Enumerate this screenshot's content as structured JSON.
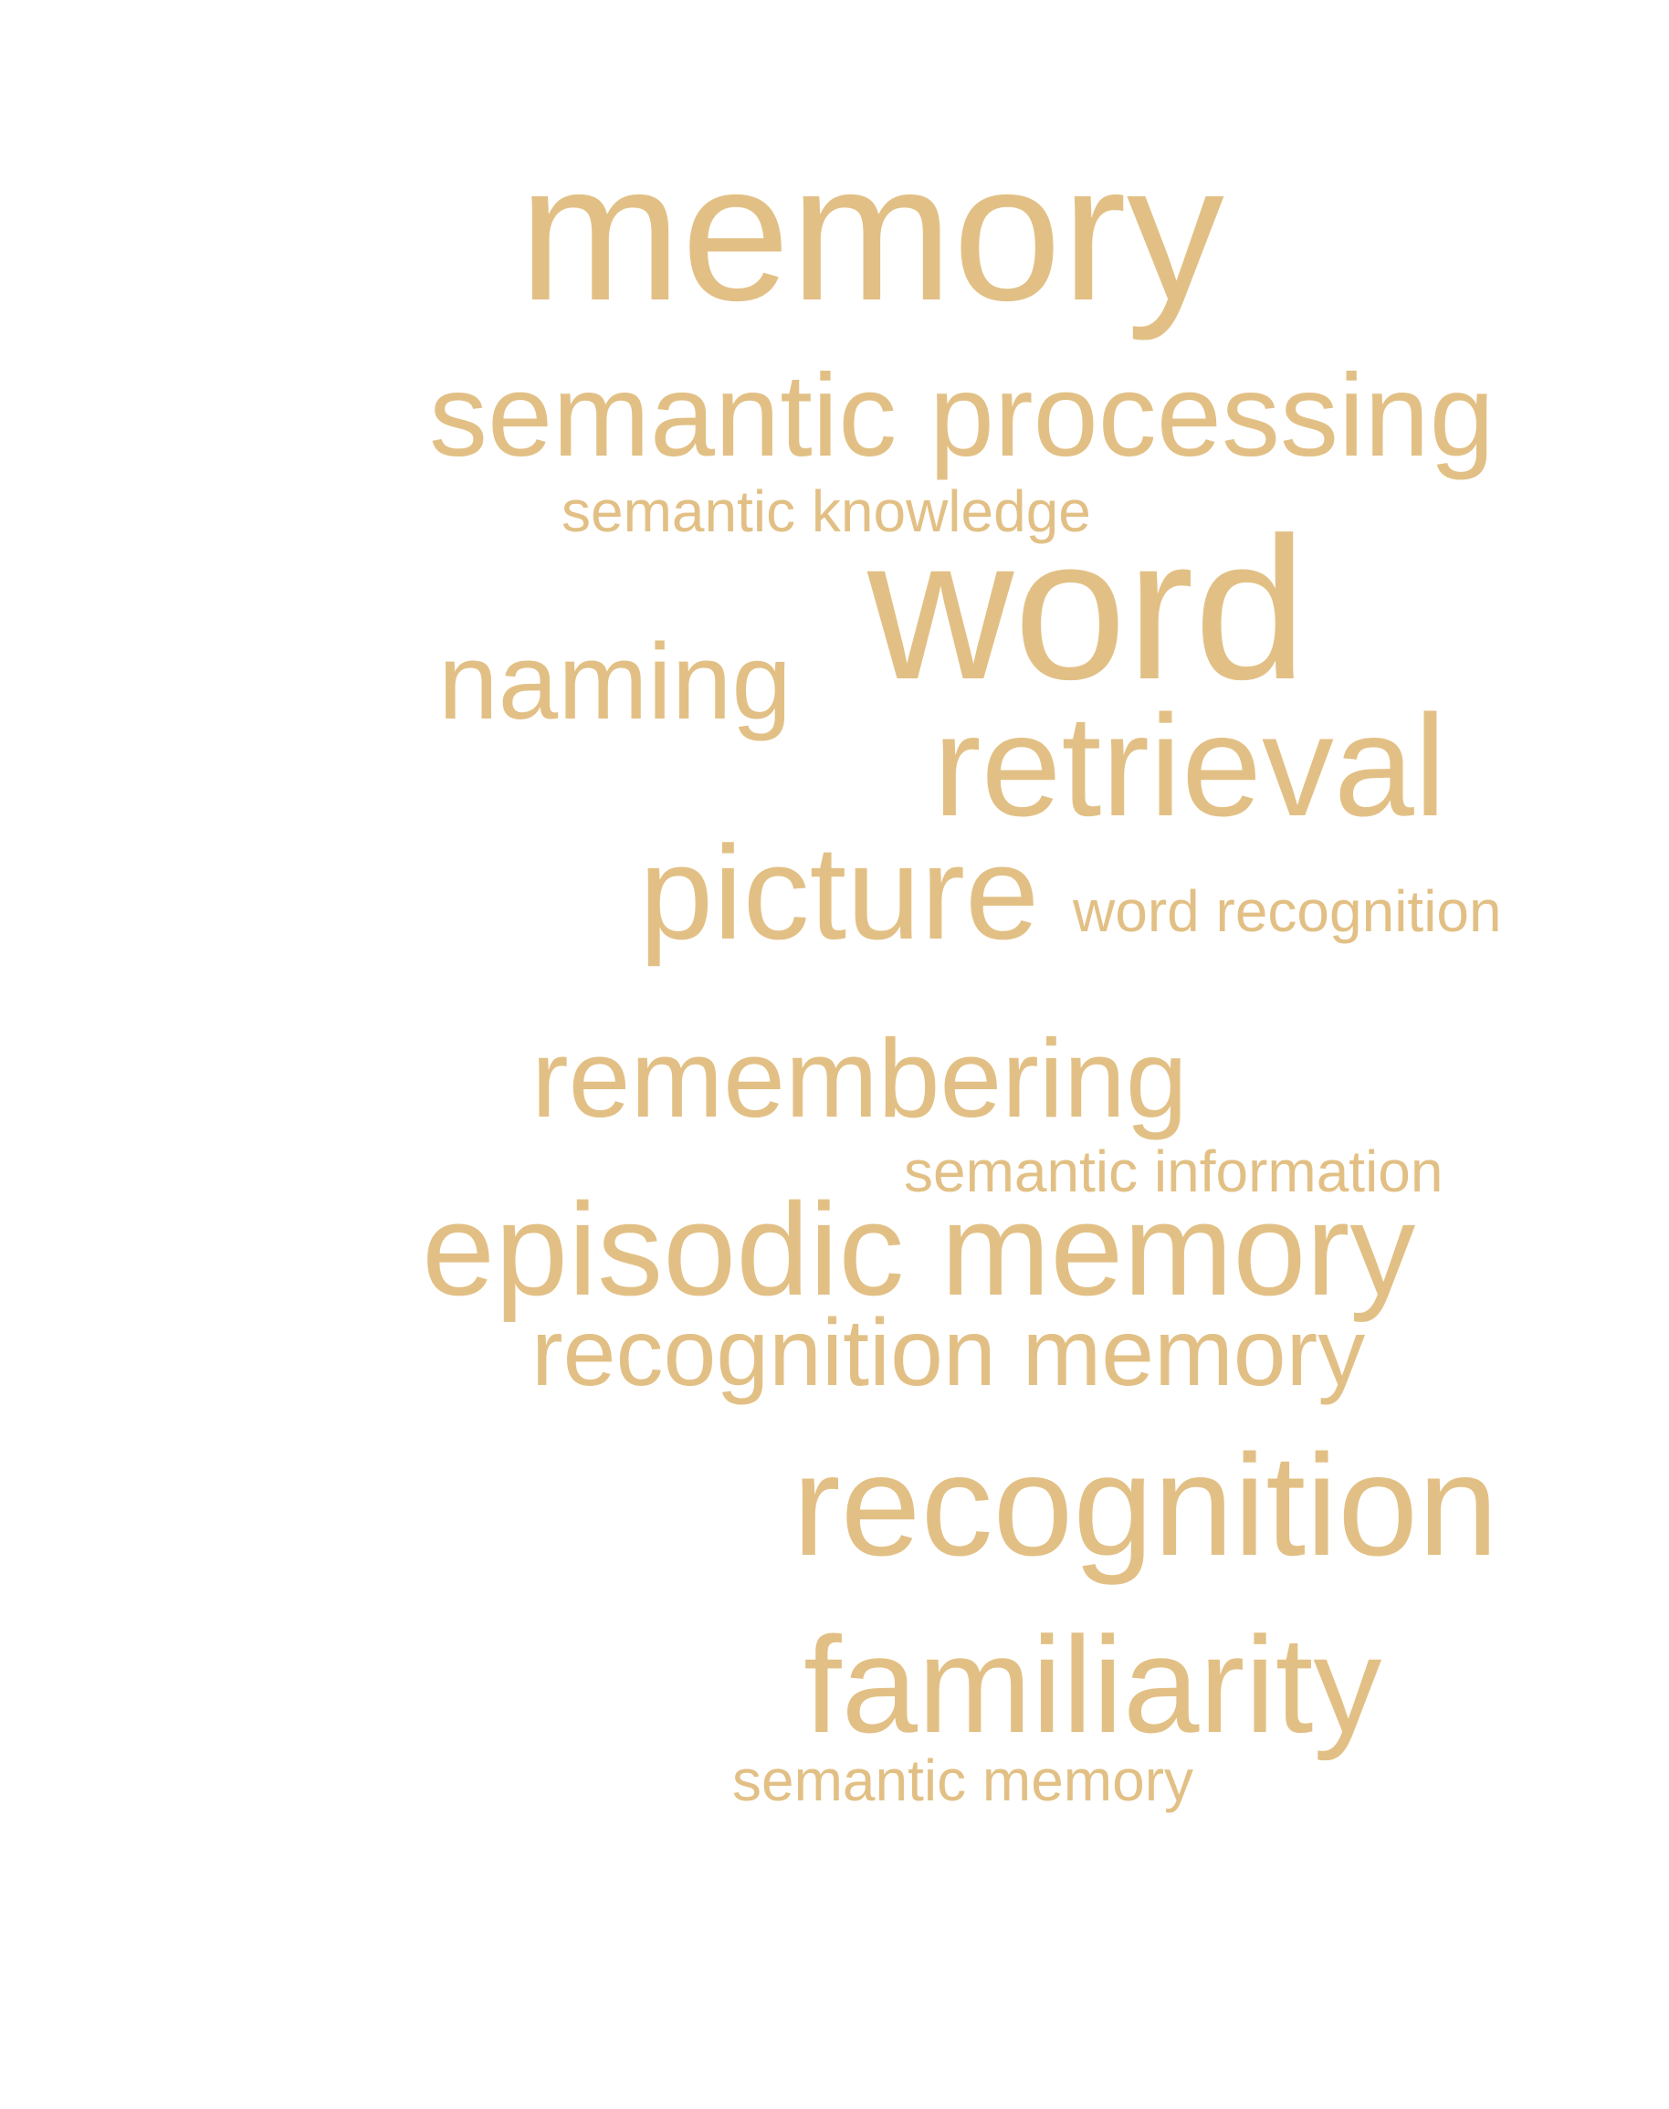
{
  "color": "#e2c085",
  "background": "#ffffff",
  "words": {
    "memory": "memory",
    "semantic_processing": "semantic processing",
    "semantic_knowledge": "semantic knowledge",
    "word": "word",
    "naming": "naming",
    "retrieval": "retrieval",
    "picture": "picture",
    "word_recognition": "word recognition",
    "remembering": "remembering",
    "semantic_information": "semantic information",
    "episodic_memory": "episodic memory",
    "recognition_memory": "recognition memory",
    "recognition": "recognition",
    "familiarity": "familiarity",
    "semantic_memory": "semantic memory"
  }
}
